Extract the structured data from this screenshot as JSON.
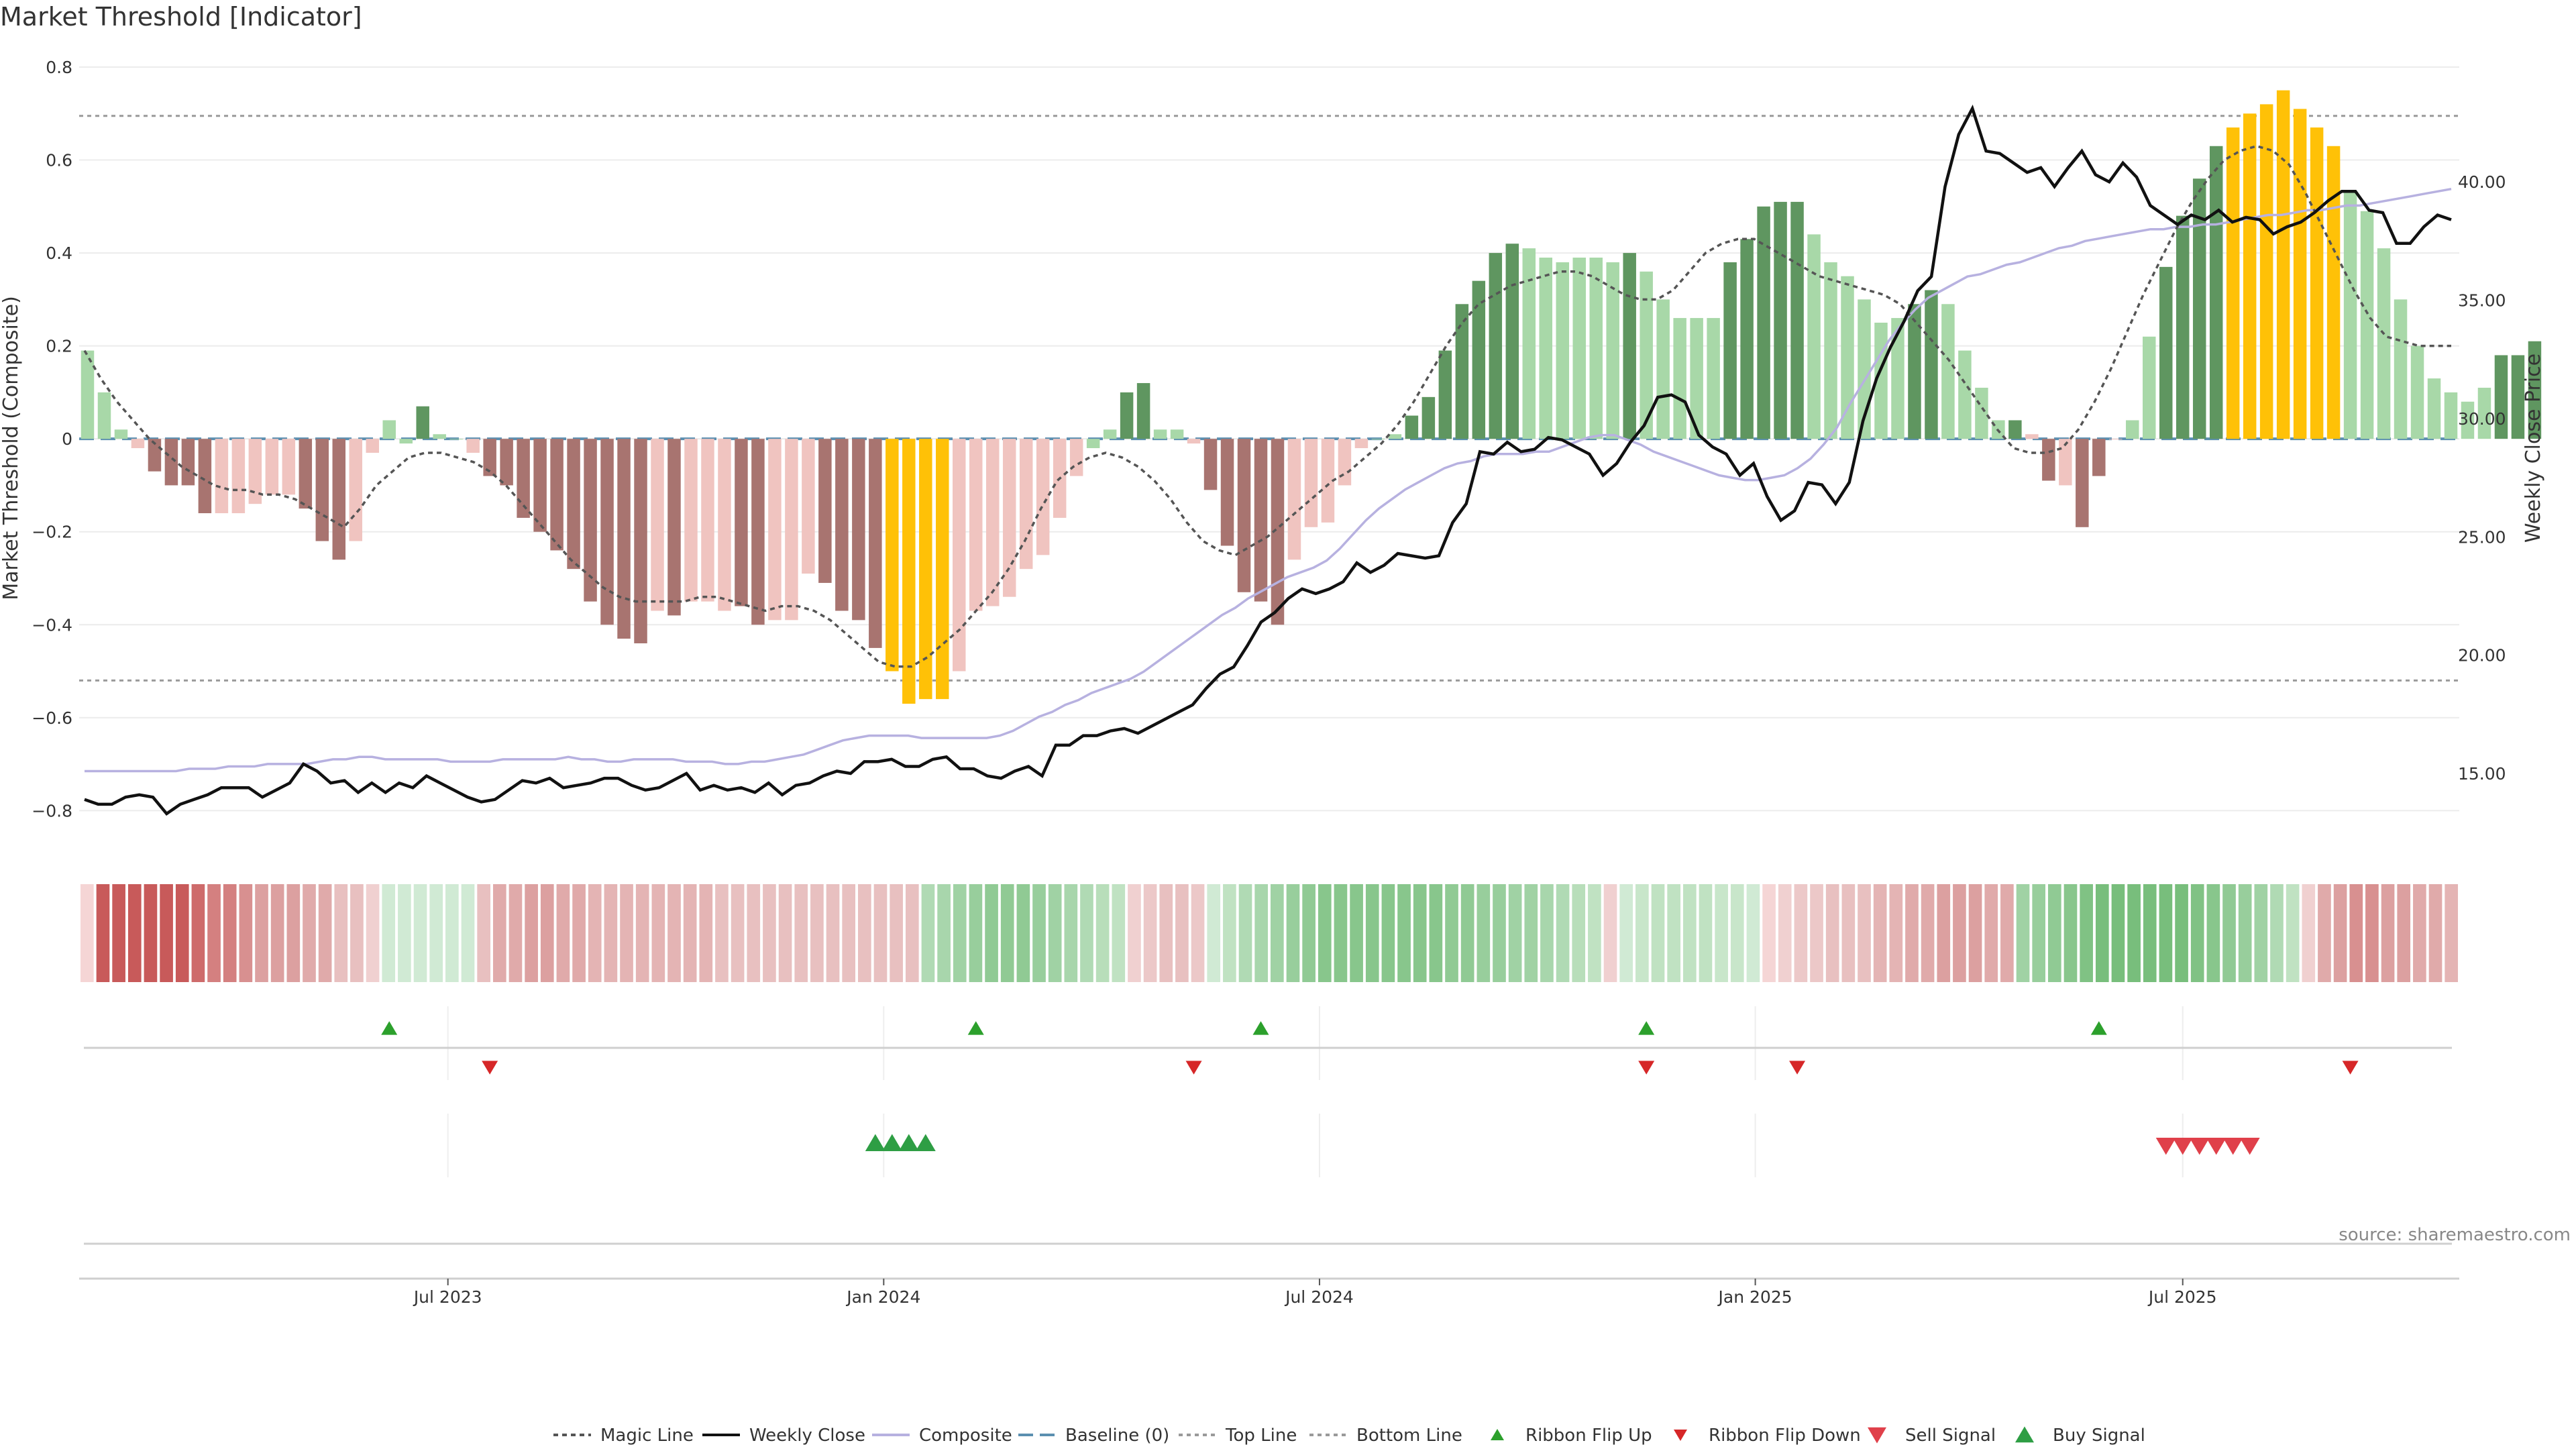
{
  "chart_data": {
    "type": "bar",
    "title": "Market Threshold [Indicator]",
    "ylabel_left": "Market Threshold (Composite)",
    "ylabel_right": "Weekly Close Price",
    "source": "source: sharemaestro.com",
    "ylim_left": [
      -0.85,
      0.8
    ],
    "ylim_right": [
      12.45,
      44.85
    ],
    "left_ticks": [
      "0.8",
      "0.6",
      "0.4",
      "0.2",
      "0",
      "−0.2",
      "−0.4",
      "−0.6",
      "−0.8"
    ],
    "left_tick_values": [
      0.8,
      0.6,
      0.4,
      0.2,
      0,
      -0.2,
      -0.4,
      -0.6,
      -0.8
    ],
    "right_ticks": [
      "40.00",
      "35.00",
      "30.00",
      "25.00",
      "20.00",
      "15.00"
    ],
    "right_tick_values": [
      40,
      35,
      30,
      25,
      20,
      15
    ],
    "top_line": 0.695,
    "bottom_line": -0.52,
    "x_ticks": [
      {
        "label": "Jul 2023",
        "week": 21.5
      },
      {
        "label": "Jan 2024",
        "week": 47.5
      },
      {
        "label": "Jul 2024",
        "week": 73.5
      },
      {
        "label": "Jan 2025",
        "week": 99.5
      },
      {
        "label": "Jul 2025",
        "week": 125
      }
    ],
    "weeks": 142,
    "composite_values": [
      0.19,
      0.1,
      0.02,
      -0.02,
      -0.07,
      -0.1,
      -0.1,
      -0.16,
      -0.16,
      -0.16,
      -0.14,
      -0.12,
      -0.12,
      -0.15,
      -0.22,
      -0.26,
      -0.22,
      -0.03,
      0.04,
      -0.01,
      0.07,
      0.01,
      0.0,
      -0.03,
      -0.08,
      -0.1,
      -0.17,
      -0.2,
      -0.24,
      -0.28,
      -0.35,
      -0.4,
      -0.43,
      -0.44,
      -0.37,
      -0.38,
      -0.35,
      -0.35,
      -0.37,
      -0.36,
      -0.4,
      -0.39,
      -0.39,
      -0.29,
      -0.31,
      -0.37,
      -0.39,
      -0.45,
      -0.5,
      -0.57,
      -0.56,
      -0.56,
      -0.5,
      -0.37,
      -0.36,
      -0.34,
      -0.28,
      -0.25,
      -0.17,
      -0.08,
      -0.02,
      0.02,
      0.1,
      0.12,
      0.02,
      0.02,
      -0.01,
      -0.11,
      -0.23,
      -0.33,
      -0.35,
      -0.4,
      -0.26,
      -0.19,
      -0.18,
      -0.1,
      -0.02,
      0.0,
      0.01,
      0.05,
      0.09,
      0.19,
      0.29,
      0.34,
      0.4,
      0.42,
      0.41,
      0.39,
      0.38,
      0.39,
      0.39,
      0.38,
      0.4,
      0.36,
      0.3,
      0.26,
      0.26,
      0.26,
      0.38,
      0.43,
      0.5,
      0.51,
      0.51,
      0.44,
      0.38,
      0.35,
      0.3,
      0.25,
      0.26,
      0.29,
      0.32,
      0.29,
      0.19,
      0.11,
      0.04,
      0.04,
      0.01,
      -0.09,
      -0.1,
      -0.19,
      -0.08,
      0.0,
      0.04,
      0.22,
      0.37,
      0.48,
      0.56,
      0.63,
      0.67,
      0.7,
      0.72,
      0.75,
      0.71,
      0.67,
      0.63,
      0.53,
      0.49,
      0.41,
      0.3,
      0.2,
      0.13,
      0.1,
      0.08,
      0.11,
      0.18,
      0.18,
      0.21
    ],
    "bar_colors": [
      "#a8d8a8",
      "#a8d8a8",
      "#a8d8a8",
      "#f0c4c0",
      "#a87470",
      "#a87470",
      "#a87470",
      "#a87470",
      "#f0c4c0",
      "#f0c4c0",
      "#f0c4c0",
      "#f0c4c0",
      "#f0c4c0",
      "#a87470",
      "#a87470",
      "#a87470",
      "#f0c4c0",
      "#f0c4c0",
      "#a8d8a8",
      "#a8d8a8",
      "#5f9660",
      "#a8d8a8",
      "#a8d8a8",
      "#f0c4c0",
      "#a87470",
      "#a87470",
      "#a87470",
      "#a87470",
      "#a87470",
      "#a87470",
      "#a87470",
      "#a87470",
      "#a87470",
      "#a87470",
      "#f0c4c0",
      "#a87470",
      "#f0c4c0",
      "#f0c4c0",
      "#f0c4c0",
      "#a87470",
      "#a87470",
      "#f0c4c0",
      "#f0c4c0",
      "#f0c4c0",
      "#a87470",
      "#a87470",
      "#a87470",
      "#a87470",
      "#ffc107",
      "#ffc107",
      "#ffc107",
      "#ffc107",
      "#f0c4c0",
      "#f0c4c0",
      "#f0c4c0",
      "#f0c4c0",
      "#f0c4c0",
      "#f0c4c0",
      "#f0c4c0",
      "#f0c4c0",
      "#a8d8a8",
      "#a8d8a8",
      "#5f9660",
      "#5f9660",
      "#a8d8a8",
      "#a8d8a8",
      "#f0c4c0",
      "#a87470",
      "#a87470",
      "#a87470",
      "#a87470",
      "#a87470",
      "#f0c4c0",
      "#f0c4c0",
      "#f0c4c0",
      "#f0c4c0",
      "#f0c4c0",
      "#a8d8a8",
      "#a8d8a8",
      "#5f9660",
      "#5f9660",
      "#5f9660",
      "#5f9660",
      "#5f9660",
      "#5f9660",
      "#5f9660",
      "#a8d8a8",
      "#a8d8a8",
      "#a8d8a8",
      "#a8d8a8",
      "#a8d8a8",
      "#a8d8a8",
      "#5f9660",
      "#a8d8a8",
      "#a8d8a8",
      "#a8d8a8",
      "#a8d8a8",
      "#a8d8a8",
      "#5f9660",
      "#5f9660",
      "#5f9660",
      "#5f9660",
      "#5f9660",
      "#a8d8a8",
      "#a8d8a8",
      "#a8d8a8",
      "#a8d8a8",
      "#a8d8a8",
      "#a8d8a8",
      "#5f9660",
      "#5f9660",
      "#a8d8a8",
      "#a8d8a8",
      "#a8d8a8",
      "#a8d8a8",
      "#5f9660",
      "#f0c4c0",
      "#a87470",
      "#f0c4c0",
      "#a87470",
      "#a87470",
      "#f0c4c0",
      "#a8d8a8",
      "#a8d8a8",
      "#5f9660",
      "#5f9660",
      "#5f9660",
      "#5f9660",
      "#ffc107",
      "#ffc107",
      "#ffc107",
      "#ffc107",
      "#ffc107",
      "#ffc107",
      "#ffc107",
      "#a8d8a8",
      "#a8d8a8",
      "#a8d8a8",
      "#a8d8a8",
      "#a8d8a8",
      "#a8d8a8",
      "#a8d8a8",
      "#a8d8a8",
      "#a8d8a8",
      "#5f9660",
      "#5f9660",
      "#5f9660",
      "#5f9660"
    ],
    "magic_line": [
      0.19,
      0.13,
      0.08,
      0.04,
      0.0,
      -0.03,
      -0.06,
      -0.08,
      -0.1,
      -0.11,
      -0.11,
      -0.12,
      -0.12,
      -0.13,
      -0.15,
      -0.17,
      -0.19,
      -0.15,
      -0.1,
      -0.07,
      -0.04,
      -0.03,
      -0.03,
      -0.04,
      -0.05,
      -0.07,
      -0.1,
      -0.14,
      -0.18,
      -0.22,
      -0.26,
      -0.29,
      -0.32,
      -0.34,
      -0.35,
      -0.35,
      -0.35,
      -0.35,
      -0.34,
      -0.34,
      -0.35,
      -0.36,
      -0.37,
      -0.36,
      -0.36,
      -0.37,
      -0.39,
      -0.42,
      -0.45,
      -0.48,
      -0.49,
      -0.49,
      -0.47,
      -0.44,
      -0.41,
      -0.37,
      -0.33,
      -0.28,
      -0.22,
      -0.15,
      -0.09,
      -0.06,
      -0.04,
      -0.03,
      -0.04,
      -0.06,
      -0.09,
      -0.13,
      -0.18,
      -0.22,
      -0.24,
      -0.25,
      -0.23,
      -0.21,
      -0.18,
      -0.15,
      -0.12,
      -0.09,
      -0.07,
      -0.04,
      -0.01,
      0.03,
      0.08,
      0.14,
      0.2,
      0.25,
      0.29,
      0.31,
      0.33,
      0.34,
      0.35,
      0.36,
      0.36,
      0.35,
      0.33,
      0.31,
      0.3,
      0.3,
      0.32,
      0.36,
      0.4,
      0.42,
      0.43,
      0.43,
      0.41,
      0.39,
      0.37,
      0.35,
      0.34,
      0.33,
      0.32,
      0.31,
      0.29,
      0.25,
      0.21,
      0.17,
      0.12,
      0.07,
      0.02,
      -0.02,
      -0.03,
      -0.03,
      -0.02,
      0.02,
      0.08,
      0.15,
      0.23,
      0.31,
      0.38,
      0.45,
      0.51,
      0.56,
      0.6,
      0.62,
      0.63,
      0.62,
      0.59,
      0.53,
      0.46,
      0.39,
      0.32,
      0.26,
      0.22,
      0.21,
      0.2,
      0.2,
      0.2
    ],
    "weekly_close": [
      13.9,
      13.7,
      13.7,
      14.0,
      14.1,
      14.0,
      13.3,
      13.7,
      13.9,
      14.1,
      14.4,
      14.4,
      14.4,
      14.0,
      14.3,
      14.6,
      15.4,
      15.1,
      14.6,
      14.7,
      14.2,
      14.6,
      14.2,
      14.6,
      14.4,
      14.9,
      14.6,
      14.3,
      14.0,
      13.8,
      13.9,
      14.3,
      14.7,
      14.6,
      14.8,
      14.4,
      14.5,
      14.6,
      14.8,
      14.8,
      14.5,
      14.3,
      14.4,
      14.7,
      15.0,
      14.3,
      14.5,
      14.3,
      14.4,
      14.2,
      14.6,
      14.1,
      14.5,
      14.6,
      14.9,
      15.1,
      15.0,
      15.5,
      15.5,
      15.6,
      15.3,
      15.3,
      15.6,
      15.7,
      15.2,
      15.2,
      14.9,
      14.8,
      15.1,
      15.3,
      14.9,
      16.2,
      16.2,
      16.6,
      16.6,
      16.8,
      16.9,
      16.7,
      17.0,
      17.3,
      17.6,
      17.9,
      18.6,
      19.2,
      19.5,
      20.4,
      21.4,
      21.8,
      22.4,
      22.8,
      22.6,
      22.8,
      23.1,
      23.9,
      23.5,
      23.8,
      24.3,
      24.2,
      24.1,
      24.2,
      25.6,
      26.4,
      28.6,
      28.5,
      29.0,
      28.6,
      28.7,
      29.2,
      29.1,
      28.8,
      28.5,
      27.6,
      28.1,
      29.0,
      29.7,
      30.9,
      31.0,
      30.7,
      29.3,
      28.8,
      28.5,
      27.6,
      28.1,
      26.7,
      25.7,
      26.1,
      27.3,
      27.2,
      26.4,
      27.3,
      29.9,
      31.7,
      33.0,
      34.1,
      35.4,
      36.0,
      39.8,
      42.0,
      43.1,
      41.3,
      41.2,
      40.8,
      40.4,
      40.6,
      39.8,
      40.6,
      41.3,
      40.3,
      40.0,
      40.8,
      40.2,
      39.0,
      38.6,
      38.2,
      38.6,
      38.4,
      38.8,
      38.3,
      38.5,
      38.4,
      37.8,
      38.1,
      38.3,
      38.7,
      39.2,
      39.6,
      39.6,
      38.8,
      38.7,
      37.4,
      37.4,
      38.1,
      38.6,
      38.4
    ],
    "composite_line": [
      15.1,
      15.1,
      15.1,
      15.1,
      15.1,
      15.1,
      15.1,
      15.1,
      15.2,
      15.2,
      15.2,
      15.3,
      15.3,
      15.3,
      15.4,
      15.4,
      15.4,
      15.4,
      15.5,
      15.6,
      15.6,
      15.7,
      15.7,
      15.6,
      15.6,
      15.6,
      15.6,
      15.6,
      15.5,
      15.5,
      15.5,
      15.5,
      15.6,
      15.6,
      15.6,
      15.6,
      15.6,
      15.7,
      15.6,
      15.6,
      15.5,
      15.5,
      15.6,
      15.6,
      15.6,
      15.6,
      15.5,
      15.5,
      15.5,
      15.4,
      15.4,
      15.5,
      15.5,
      15.6,
      15.7,
      15.8,
      16.0,
      16.2,
      16.4,
      16.5,
      16.6,
      16.6,
      16.6,
      16.6,
      16.5,
      16.5,
      16.5,
      16.5,
      16.5,
      16.5,
      16.6,
      16.8,
      17.1,
      17.4,
      17.6,
      17.9,
      18.1,
      18.4,
      18.6,
      18.8,
      19.0,
      19.3,
      19.7,
      20.1,
      20.5,
      20.9,
      21.3,
      21.7,
      22.0,
      22.4,
      22.7,
      23.0,
      23.3,
      23.5,
      23.7,
      24.0,
      24.5,
      25.1,
      25.7,
      26.2,
      26.6,
      27.0,
      27.3,
      27.6,
      27.9,
      28.1,
      28.2,
      28.4,
      28.5,
      28.5,
      28.5,
      28.6,
      28.6,
      28.8,
      29.0,
      29.2,
      29.3,
      29.3,
      29.1,
      28.9,
      28.6,
      28.4,
      28.2,
      28.0,
      27.8,
      27.6,
      27.5,
      27.4,
      27.4,
      27.5,
      27.6,
      27.9,
      28.3,
      28.9,
      29.6,
      30.6,
      31.5,
      32.4,
      33.3,
      34.0,
      34.6,
      35.1,
      35.4,
      35.7,
      36.0,
      36.1,
      36.3,
      36.5,
      36.6,
      36.8,
      37.0,
      37.2,
      37.3,
      37.5,
      37.6,
      37.7,
      37.8,
      37.9,
      38.0,
      38.0,
      38.1,
      38.1,
      38.2,
      38.2,
      38.3,
      38.4,
      38.5,
      38.6,
      38.6,
      38.7,
      38.8,
      38.8,
      38.9,
      39.0,
      39.0,
      39.1,
      39.2,
      39.3,
      39.4,
      39.5,
      39.6,
      39.7
    ],
    "ribbon_colors": [
      "#f5d5d5",
      "#c85a5a",
      "#c85a5a",
      "#c85a5a",
      "#c85a5a",
      "#c85a5a",
      "#c85a5a",
      "#ce6b6b",
      "#d48080",
      "#d48080",
      "#d89090",
      "#dca0a0",
      "#dca0a0",
      "#dca0a0",
      "#e0aaaa",
      "#e0aaaa",
      "#e8c0c0",
      "#e8c0c0",
      "#f0d0d0",
      "#d0ead4",
      "#d0ead4",
      "#d0ead4",
      "#d0ead4",
      "#d0ead4",
      "#d0ead4",
      "#e8c0c0",
      "#e0aaaa",
      "#e0aaaa",
      "#dca0a0",
      "#dca0a0",
      "#e0aaaa",
      "#e0aaaa",
      "#e4b4b4",
      "#e4b4b4",
      "#e4b4b4",
      "#e4b4b4",
      "#e4b4b4",
      "#e4b4b4",
      "#e4b4b4",
      "#e4b4b4",
      "#e8c0c0",
      "#e8c0c0",
      "#e8c0c0",
      "#e8c0c0",
      "#e8c0c0",
      "#e8c0c0",
      "#e8c0c0",
      "#e8c0c0",
      "#e8c0c0",
      "#e8c0c0",
      "#e8c0c0",
      "#e8c0c0",
      "#e8c0c0",
      "#b0dab4",
      "#a8d6ac",
      "#a0d2a4",
      "#98ce9c",
      "#90ca94",
      "#90ca94",
      "#90ca94",
      "#98ce9c",
      "#a0d2a4",
      "#a8d6ac",
      "#b0dab4",
      "#b8deba",
      "#c0e2c2",
      "#f0d0d0",
      "#ecc8c8",
      "#e8c0c0",
      "#e8c0c0",
      "#ecc8c8",
      "#d0ead4",
      "#c0e2c2",
      "#b0dab4",
      "#a8d6ac",
      "#a0d2a4",
      "#98ce9c",
      "#90ca94",
      "#88c68c",
      "#88c68c",
      "#88c68c",
      "#88c68c",
      "#88c68c",
      "#88c68c",
      "#88c68c",
      "#88c68c",
      "#90ca94",
      "#90ca94",
      "#98ce9c",
      "#98ce9c",
      "#a0d2a4",
      "#a0d2a4",
      "#a8d6ac",
      "#b0dab4",
      "#b8deba",
      "#c0e2c2",
      "#f0d0d0",
      "#d0ead4",
      "#c8e6ca",
      "#c0e2c2",
      "#c0e2c2",
      "#c0e2c2",
      "#c0e2c2",
      "#c8e6ca",
      "#c8e6ca",
      "#d0ead4",
      "#f5d5d5",
      "#f0d0d0",
      "#ecc8c8",
      "#ecc8c8",
      "#e8c0c0",
      "#e8c0c0",
      "#e8c0c0",
      "#e4b4b4",
      "#e4b4b4",
      "#e0aaaa",
      "#e0aaaa",
      "#dca0a0",
      "#dca0a0",
      "#dca0a0",
      "#e0aaaa",
      "#e0aaaa",
      "#a0d2a4",
      "#98ce9c",
      "#90ca94",
      "#88c68c",
      "#80c284",
      "#78be7c",
      "#78be7c",
      "#78be7c",
      "#78be7c",
      "#78be7c",
      "#78be7c",
      "#80c284",
      "#88c68c",
      "#90ca94",
      "#98ce9c",
      "#a0d2a4",
      "#b0dab4",
      "#c0e2c2",
      "#f0d0d0",
      "#e0aaaa",
      "#dca0a0",
      "#d89090",
      "#d89090",
      "#dca0a0",
      "#dca0a0",
      "#e0aaaa",
      "#e0aaaa",
      "#e4b4b4"
    ],
    "ribbon_flip_up_weeks": [
      18,
      53,
      70,
      93,
      120
    ],
    "ribbon_flip_down_weeks": [
      24,
      66,
      93,
      102,
      135
    ],
    "buy_signal_weeks": [
      47,
      48,
      49,
      50
    ],
    "sell_signal_weeks": [
      124,
      125,
      126,
      127,
      128,
      129
    ],
    "legend": [
      "Magic Line",
      "Weekly Close",
      "Composite",
      "Baseline (0)",
      "Top Line",
      "Bottom Line",
      "Ribbon Flip Up",
      "Ribbon Flip Down",
      "Sell Signal",
      "Buy Signal"
    ],
    "colors": {
      "bull_dark": "#5f9660",
      "bull_light": "#a8d8a8",
      "bear_dark": "#a87470",
      "bear_light": "#f0c4c0",
      "extreme": "#ffc107",
      "close": "#111111",
      "composite": "#b7b1e0",
      "magic": "#555555",
      "baseline": "#5b8fb0",
      "flip_up": "#2ca02c",
      "flip_down": "#d62728",
      "buy": "#2e9e44",
      "sell": "#e0404a"
    }
  }
}
